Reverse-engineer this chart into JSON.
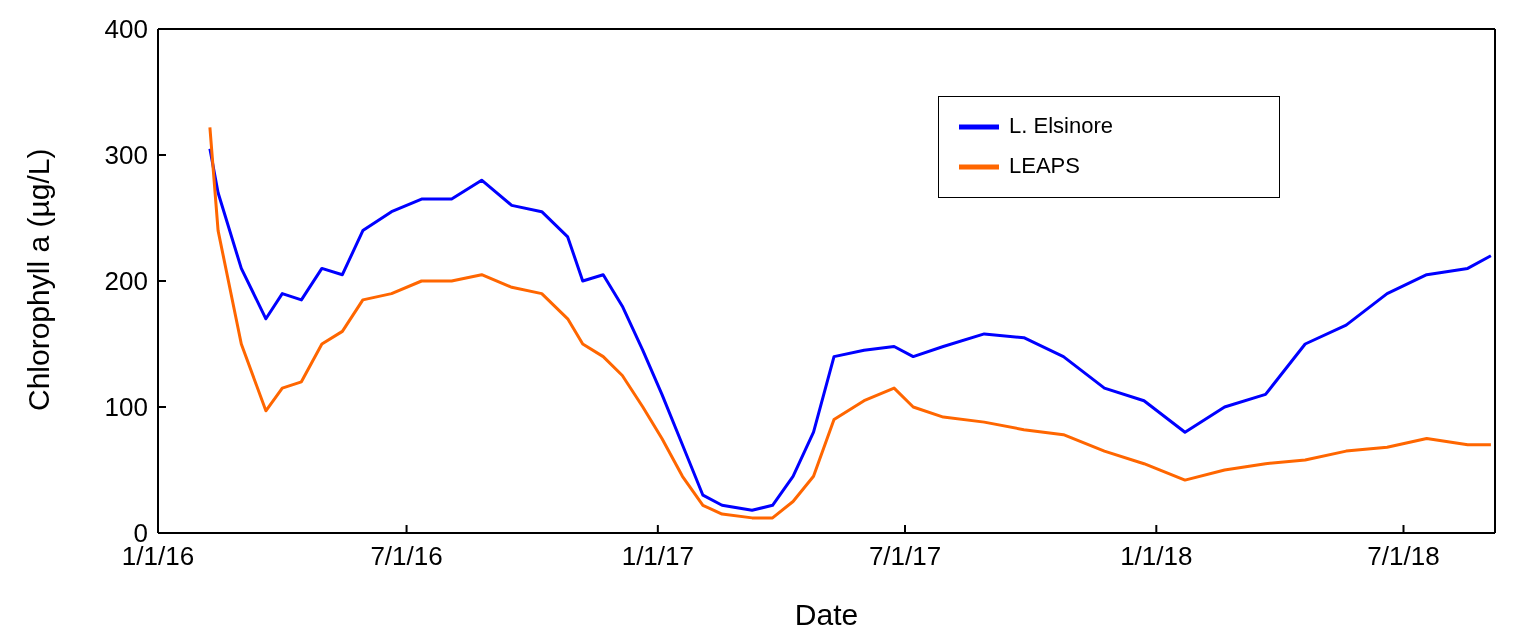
{
  "chart_data": {
    "type": "line",
    "xlabel": "Date",
    "ylabel": "Chlorophyll a (µg/L)",
    "x": [
      "2016-02-08",
      "2016-02-14",
      "2016-03-02",
      "2016-03-20",
      "2016-04-01",
      "2016-04-15",
      "2016-04-30",
      "2016-05-15",
      "2016-05-30",
      "2016-06-20",
      "2016-07-12",
      "2016-08-03",
      "2016-08-25",
      "2016-09-16",
      "2016-10-08",
      "2016-10-27",
      "2016-11-07",
      "2016-11-22",
      "2016-12-06",
      "2016-12-21",
      "2017-01-04",
      "2017-01-19",
      "2017-02-03",
      "2017-02-17",
      "2017-03-11",
      "2017-03-26",
      "2017-04-10",
      "2017-04-25",
      "2017-05-10",
      "2017-06-01",
      "2017-06-23",
      "2017-07-07",
      "2017-07-29",
      "2017-08-28",
      "2017-09-26",
      "2017-10-25",
      "2017-11-24",
      "2017-12-23",
      "2018-01-22",
      "2018-02-20",
      "2018-03-22",
      "2018-04-20",
      "2018-05-20",
      "2018-06-19",
      "2018-07-18",
      "2018-08-17",
      "2018-09-03"
    ],
    "series": [
      {
        "name": "L. Elsinore",
        "color": "#0000ff",
        "values": [
          305,
          270,
          210,
          170,
          190,
          185,
          210,
          205,
          240,
          255,
          265,
          265,
          280,
          260,
          255,
          235,
          200,
          205,
          180,
          145,
          110,
          70,
          30,
          22,
          18,
          22,
          45,
          80,
          140,
          145,
          148,
          140,
          148,
          158,
          155,
          140,
          115,
          105,
          80,
          100,
          110,
          150,
          165,
          190,
          205,
          210,
          220
        ]
      },
      {
        "name": "LEAPS",
        "color": "#ff6600",
        "values": [
          322,
          240,
          150,
          97,
          115,
          120,
          150,
          160,
          185,
          190,
          200,
          200,
          205,
          195,
          190,
          170,
          150,
          140,
          125,
          100,
          75,
          45,
          22,
          15,
          12,
          12,
          25,
          45,
          90,
          105,
          115,
          100,
          92,
          88,
          82,
          78,
          65,
          55,
          42,
          50,
          55,
          58,
          65,
          68,
          75,
          70,
          70
        ]
      }
    ],
    "xlim": [
      "2016-01-01",
      "2018-09-06"
    ],
    "xticks": [
      {
        "value": "2016-01-01",
        "label": "1/1/16"
      },
      {
        "value": "2016-07-01",
        "label": "7/1/16"
      },
      {
        "value": "2017-01-01",
        "label": "1/1/17"
      },
      {
        "value": "2017-07-01",
        "label": "7/1/17"
      },
      {
        "value": "2018-01-01",
        "label": "1/1/18"
      },
      {
        "value": "2018-07-01",
        "label": "7/1/18"
      }
    ],
    "ylim": [
      0,
      400
    ],
    "yticks": [
      0,
      100,
      200,
      300,
      400
    ],
    "grid": false,
    "legend": "top right",
    "marker": "none",
    "line_style": "solid"
  }
}
